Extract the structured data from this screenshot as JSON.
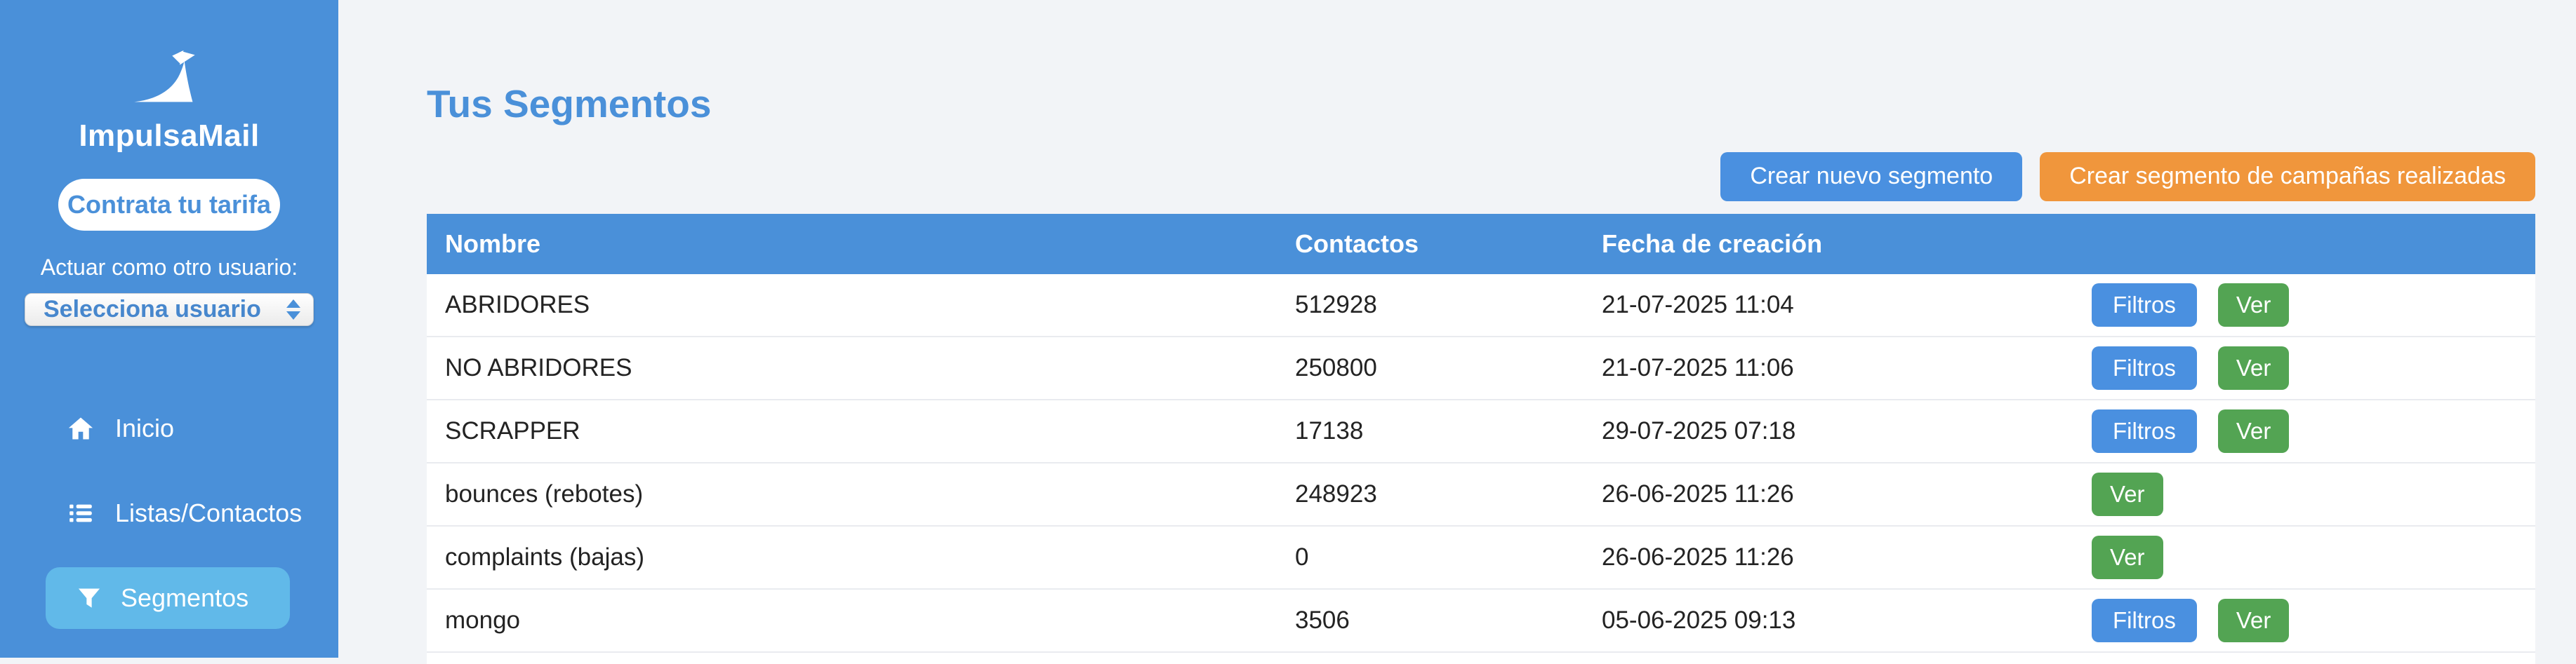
{
  "colors": {
    "primary_blue": "#4a90d9",
    "active_nav_blue": "#61b9e9",
    "button_blue": "#4a90e0",
    "orange": "#f0963c",
    "green": "#53a453",
    "page_bg": "#f2f4f7"
  },
  "sidebar": {
    "brand": "ImpulsaMail",
    "logo_icon": "paper-plane-swoosh-logo",
    "cta_button": "Contrata tu tarifa",
    "impersonate_label": "Actuar como otro usuario:",
    "user_select": {
      "value": "Selecciona usuario"
    },
    "nav": [
      {
        "label": "Inicio",
        "icon": "home-icon",
        "active": false
      },
      {
        "label": "Listas/Contactos",
        "icon": "list-icon",
        "active": false
      },
      {
        "label": "Segmentos",
        "icon": "filter-icon",
        "active": true
      }
    ]
  },
  "main": {
    "title": "Tus Segmentos",
    "buttons": {
      "new_segment": "Crear nuevo segmento",
      "campaign_segment": "Crear segmento de campañas realizadas"
    },
    "table": {
      "headers": {
        "name": "Nombre",
        "contacts": "Contactos",
        "created": "Fecha de creación"
      },
      "action_labels": {
        "filtros": "Filtros",
        "ver": "Ver"
      },
      "rows": [
        {
          "name": "ABRIDORES",
          "contacts": "512928",
          "created": "21-07-2025 11:04",
          "actions": [
            "filtros",
            "ver"
          ]
        },
        {
          "name": "NO ABRIDORES",
          "contacts": "250800",
          "created": "21-07-2025 11:06",
          "actions": [
            "filtros",
            "ver"
          ]
        },
        {
          "name": "SCRAPPER",
          "contacts": "17138",
          "created": "29-07-2025 07:18",
          "actions": [
            "filtros",
            "ver"
          ]
        },
        {
          "name": "bounces (rebotes)",
          "contacts": "248923",
          "created": "26-06-2025 11:26",
          "actions": [
            "ver"
          ]
        },
        {
          "name": "complaints (bajas)",
          "contacts": "0",
          "created": "26-06-2025 11:26",
          "actions": [
            "ver"
          ]
        },
        {
          "name": "mongo",
          "contacts": "3506",
          "created": "05-06-2025 09:13",
          "actions": [
            "filtros",
            "ver"
          ]
        }
      ]
    }
  }
}
